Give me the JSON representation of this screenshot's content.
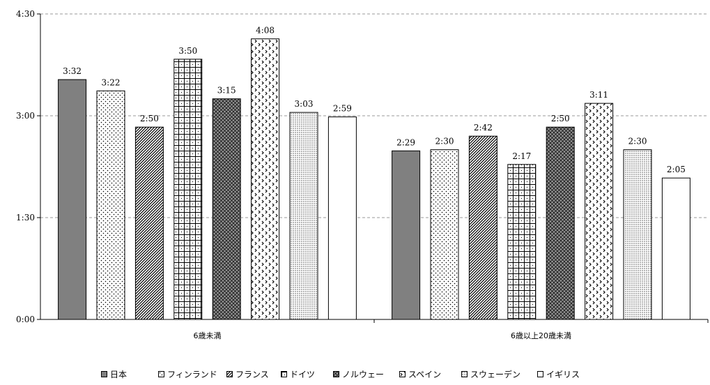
{
  "chart_data": {
    "type": "bar",
    "categories": [
      "6歳未満",
      "6歳以上20歳未満"
    ],
    "series": [
      {
        "name": "日本",
        "values": [
          212,
          149
        ],
        "labels": [
          "3:32",
          "2:29"
        ],
        "pattern": "solid"
      },
      {
        "name": "フィンランド",
        "values": [
          202,
          150
        ],
        "labels": [
          "3:22",
          "2:30"
        ],
        "pattern": "sparse-dots"
      },
      {
        "name": "フランス",
        "values": [
          170,
          162
        ],
        "labels": [
          "2:50",
          "2:42"
        ],
        "pattern": "diagonal"
      },
      {
        "name": "ドイツ",
        "values": [
          230,
          137
        ],
        "labels": [
          "3:50",
          "2:17"
        ],
        "pattern": "grid"
      },
      {
        "name": "ノルウェー",
        "values": [
          195,
          170
        ],
        "labels": [
          "3:15",
          "2:50"
        ],
        "pattern": "crosshatch"
      },
      {
        "name": "スペイン",
        "values": [
          248,
          191
        ],
        "labels": [
          "4:08",
          "3:11"
        ],
        "pattern": "chevron"
      },
      {
        "name": "スウェーデン",
        "values": [
          183,
          150
        ],
        "labels": [
          "3:03",
          "2:30"
        ],
        "pattern": "dense-dots"
      },
      {
        "name": "イギリス",
        "values": [
          179,
          125
        ],
        "labels": [
          "2:59",
          "2:05"
        ],
        "pattern": "none"
      }
    ],
    "unit": "minutes",
    "ylim": [
      0,
      270
    ],
    "yticks": [
      0,
      90,
      180,
      270
    ],
    "ytick_labels": [
      "0:00",
      "1:30",
      "3:00",
      "4:30"
    ],
    "grid": true,
    "legend_position": "bottom",
    "colors": {
      "dark": "#808080",
      "stroke": "#000000",
      "grid": "#999999"
    }
  }
}
